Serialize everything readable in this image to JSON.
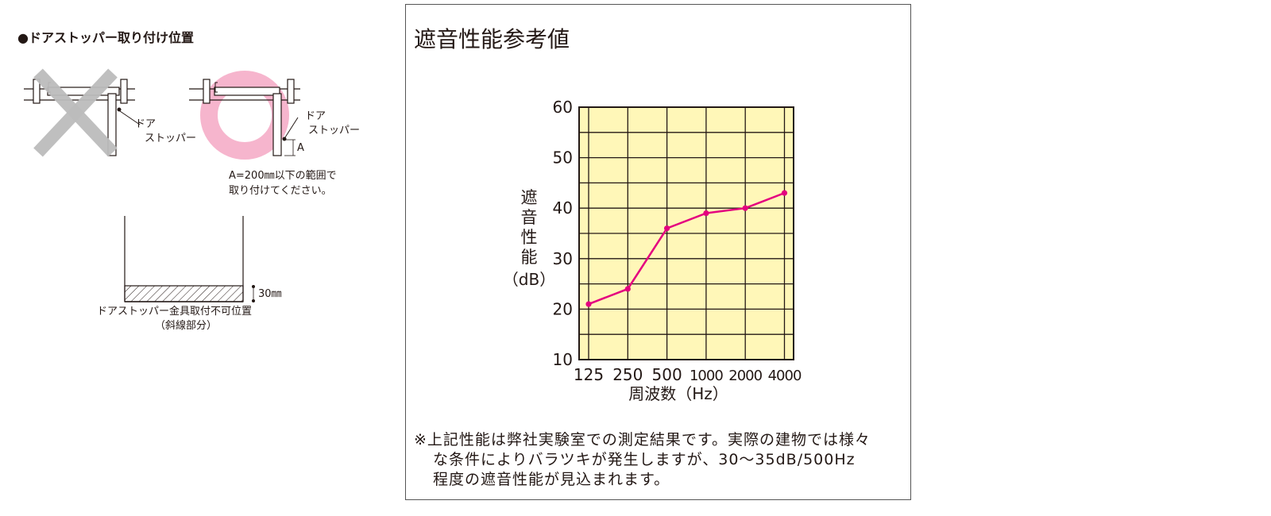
{
  "left": {
    "section_title": "●ドアストッパー取り付け位置",
    "fig1": {
      "label_line1": "ドア",
      "label_line2": "ストッパー"
    },
    "fig2": {
      "label_line1": "ドア",
      "label_line2": "ストッパー",
      "dim_label": "A"
    },
    "note_line1": "A=200㎜以下の範囲で",
    "note_line2": "取り付けてください。",
    "fig3": {
      "dim_label": "30㎜",
      "caption_line1": "ドアストッパー金具取付不可位置",
      "caption_line2": "（斜線部分）"
    }
  },
  "panel": {
    "title": "遮音性能参考値",
    "note_line1": "※上記性能は弊社実験室での測定結果です。実際の建物では様々",
    "note_line2": "な条件によりバラツキが発生しますが、30～35dB/500Hz",
    "note_line3": "程度の遮音性能が見込まれます。"
  },
  "colors": {
    "grid_fill": "#fff7b8",
    "line": "#e4007f",
    "cross": "#bcbcbc",
    "circle": "#f6b5cd"
  },
  "chart_data": {
    "type": "line",
    "categories": [
      "125",
      "250",
      "500",
      "1000",
      "2000",
      "4000"
    ],
    "series": [
      {
        "values": [
          21,
          24,
          36,
          39,
          40,
          43
        ]
      }
    ],
    "title": "",
    "xlabel": "周波数（Hz）",
    "ylabel_chars": [
      "遮",
      "音",
      "性",
      "能"
    ],
    "ylabel_unit": "（dB）",
    "ylim": [
      10,
      60
    ],
    "yticks": [
      "10",
      "20",
      "30",
      "40",
      "50",
      "60"
    ],
    "grid": true,
    "legend": "none"
  }
}
